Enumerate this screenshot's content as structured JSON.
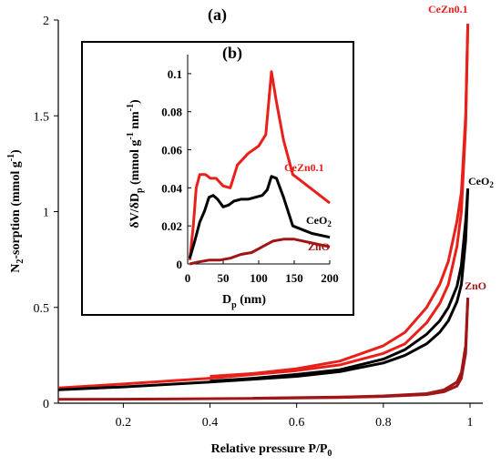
{
  "main": {
    "panel_label": "(a)",
    "xlabel": {
      "main": "Relative pressure P/P",
      "sub": "0"
    },
    "ylabel": {
      "pre": "N",
      "sub": "2",
      "post": "-sorption (mmol g",
      "sup": "-1",
      "end": ")"
    }
  },
  "inset": {
    "panel_label": "(b)",
    "xlabel": {
      "main": "D",
      "sub": "p",
      "post": " (nm)"
    },
    "ylabel": {
      "pre": "δV/δD",
      "sub": "p",
      "post": " (mmol g",
      "sup": "-1",
      "post2": " nm",
      "sup2": "-1",
      "end": ")"
    }
  },
  "colors": {
    "CeZn0.1": "#e8201a",
    "CeO2": "#000000",
    "ZnO": "#a01515"
  },
  "chart_data": [
    {
      "type": "line",
      "title": "",
      "xlabel": "Relative pressure P/P0",
      "ylabel": "N2-sorption (mmol g-1)",
      "xlim": [
        0.05,
        1.0
      ],
      "ylim": [
        0,
        2.0
      ],
      "xticks": [
        "0.2",
        "0.4",
        "0.6",
        "0.8",
        "1"
      ],
      "yticks": [
        "0",
        "0.5",
        "1",
        "1.5",
        "2"
      ],
      "grid": false,
      "series": [
        {
          "name": "CeZn0.1",
          "label": "CeZn0.1",
          "branch": "adsorption",
          "x": [
            0.05,
            0.2,
            0.4,
            0.6,
            0.7,
            0.8,
            0.85,
            0.9,
            0.93,
            0.95,
            0.97,
            0.98,
            0.99,
            0.995
          ],
          "y": [
            0.08,
            0.1,
            0.13,
            0.17,
            0.2,
            0.26,
            0.31,
            0.42,
            0.52,
            0.62,
            0.82,
            1.0,
            1.45,
            1.98
          ]
        },
        {
          "name": "CeZn0.1",
          "label": "",
          "branch": "desorption",
          "x": [
            0.995,
            0.99,
            0.98,
            0.97,
            0.95,
            0.93,
            0.9,
            0.85,
            0.8,
            0.7,
            0.6,
            0.5,
            0.4
          ],
          "y": [
            1.98,
            1.5,
            1.1,
            0.95,
            0.74,
            0.62,
            0.5,
            0.37,
            0.3,
            0.22,
            0.18,
            0.155,
            0.14
          ]
        },
        {
          "name": "CeO2",
          "label": "CeO2",
          "branch": "adsorption",
          "x": [
            0.05,
            0.2,
            0.4,
            0.6,
            0.7,
            0.8,
            0.85,
            0.9,
            0.93,
            0.95,
            0.97,
            0.98,
            0.99,
            0.995
          ],
          "y": [
            0.07,
            0.085,
            0.11,
            0.14,
            0.165,
            0.21,
            0.25,
            0.31,
            0.37,
            0.43,
            0.53,
            0.62,
            0.85,
            1.12
          ]
        },
        {
          "name": "CeO2",
          "label": "",
          "branch": "desorption",
          "x": [
            0.995,
            0.99,
            0.98,
            0.97,
            0.95,
            0.93,
            0.9,
            0.85,
            0.8,
            0.7,
            0.6,
            0.5,
            0.4
          ],
          "y": [
            1.12,
            0.95,
            0.72,
            0.61,
            0.5,
            0.43,
            0.36,
            0.28,
            0.23,
            0.175,
            0.15,
            0.13,
            0.115
          ]
        },
        {
          "name": "ZnO",
          "label": "ZnO",
          "branch": "adsorption",
          "x": [
            0.05,
            0.3,
            0.5,
            0.7,
            0.8,
            0.9,
            0.94,
            0.97,
            0.98,
            0.99,
            0.995
          ],
          "y": [
            0.02,
            0.022,
            0.025,
            0.03,
            0.035,
            0.045,
            0.06,
            0.09,
            0.13,
            0.26,
            0.55
          ]
        },
        {
          "name": "ZnO",
          "label": "",
          "branch": "desorption",
          "x": [
            0.995,
            0.99,
            0.98,
            0.97,
            0.94,
            0.9,
            0.8,
            0.7,
            0.5
          ],
          "y": [
            0.55,
            0.3,
            0.16,
            0.11,
            0.07,
            0.05,
            0.038,
            0.032,
            0.026
          ]
        }
      ]
    },
    {
      "type": "line",
      "title": "",
      "xlabel": "Dp (nm)",
      "ylabel": "δV/δDp (mmol g-1 nm-1)",
      "xlim": [
        0,
        200
      ],
      "ylim": [
        0,
        0.11
      ],
      "xticks": [
        "0",
        "50",
        "100",
        "150",
        "200"
      ],
      "yticks": [
        "0",
        "0.02",
        "0.04",
        "0.06",
        "0.08",
        "0.1"
      ],
      "grid": false,
      "series": [
        {
          "name": "CeZn0.1",
          "label": "CeZn0.1",
          "x": [
            3,
            8,
            12,
            17,
            25,
            32,
            40,
            50,
            60,
            70,
            85,
            100,
            110,
            118,
            125,
            135,
            148,
            200
          ],
          "y": [
            0.002,
            0.02,
            0.04,
            0.047,
            0.047,
            0.045,
            0.045,
            0.041,
            0.04,
            0.052,
            0.058,
            0.062,
            0.068,
            0.101,
            0.085,
            0.065,
            0.047,
            0.032
          ]
        },
        {
          "name": "CeO2",
          "label": "CeO2",
          "x": [
            3,
            10,
            17,
            24,
            30,
            36,
            42,
            50,
            58,
            65,
            75,
            85,
            95,
            105,
            112,
            118,
            125,
            135,
            148,
            175,
            200
          ],
          "y": [
            0.003,
            0.012,
            0.022,
            0.028,
            0.035,
            0.036,
            0.034,
            0.03,
            0.031,
            0.033,
            0.034,
            0.034,
            0.035,
            0.036,
            0.039,
            0.046,
            0.045,
            0.035,
            0.02,
            0.016,
            0.014
          ]
        },
        {
          "name": "ZnO",
          "label": "ZnO",
          "x": [
            3,
            15,
            30,
            45,
            60,
            75,
            90,
            100,
            110,
            120,
            135,
            150,
            175,
            200
          ],
          "y": [
            0.0,
            0.001,
            0.002,
            0.002,
            0.003,
            0.005,
            0.006,
            0.008,
            0.01,
            0.012,
            0.013,
            0.013,
            0.011,
            0.009
          ]
        }
      ]
    }
  ]
}
